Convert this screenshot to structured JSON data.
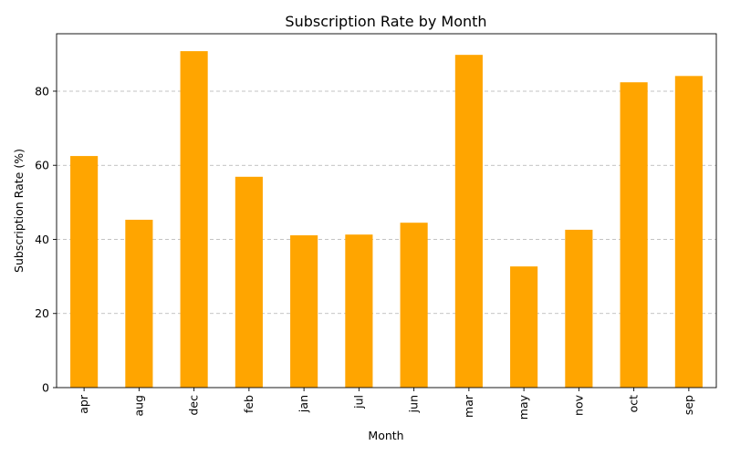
{
  "chart_data": {
    "type": "bar",
    "title": "Subscription Rate by Month",
    "xlabel": "Month",
    "ylabel": "Subscription Rate (%)",
    "categories": [
      "apr",
      "aug",
      "dec",
      "feb",
      "jan",
      "jul",
      "jun",
      "mar",
      "may",
      "nov",
      "oct",
      "sep"
    ],
    "values": [
      62.5,
      45.3,
      90.8,
      56.9,
      41.1,
      41.3,
      44.5,
      89.8,
      32.7,
      42.6,
      82.4,
      84.1
    ],
    "ylim": [
      0,
      95.5
    ],
    "yticks": [
      "0",
      "20",
      "40",
      "60",
      "80"
    ],
    "grid": "y-axis dashed",
    "bar_color": "#FFA500",
    "legend": "none"
  }
}
